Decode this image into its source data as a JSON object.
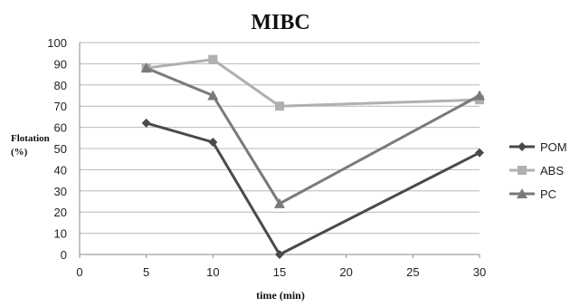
{
  "chart_data": {
    "type": "line",
    "title": "MIBC",
    "ylabel_line1": "Flotation",
    "ylabel_line2": "(%)",
    "xlabel": "time (min)",
    "xlim": [
      0,
      30
    ],
    "ylim": [
      0,
      100
    ],
    "x_ticks": [
      0,
      5,
      10,
      15,
      20,
      25,
      30
    ],
    "y_ticks": [
      0,
      10,
      20,
      30,
      40,
      50,
      60,
      70,
      80,
      90,
      100
    ],
    "grid": true,
    "legend_position": "right",
    "x": [
      5,
      10,
      15,
      30
    ],
    "series": [
      {
        "name": "POM",
        "marker": "diamond",
        "color": "#4a4a4a",
        "values": [
          62,
          53,
          0,
          48
        ]
      },
      {
        "name": "ABS",
        "marker": "square",
        "color": "#b0b0b0",
        "values": [
          88,
          92,
          70,
          73
        ]
      },
      {
        "name": "PC",
        "marker": "triangle",
        "color": "#7a7a7a",
        "values": [
          88,
          75,
          24,
          75
        ]
      }
    ]
  }
}
